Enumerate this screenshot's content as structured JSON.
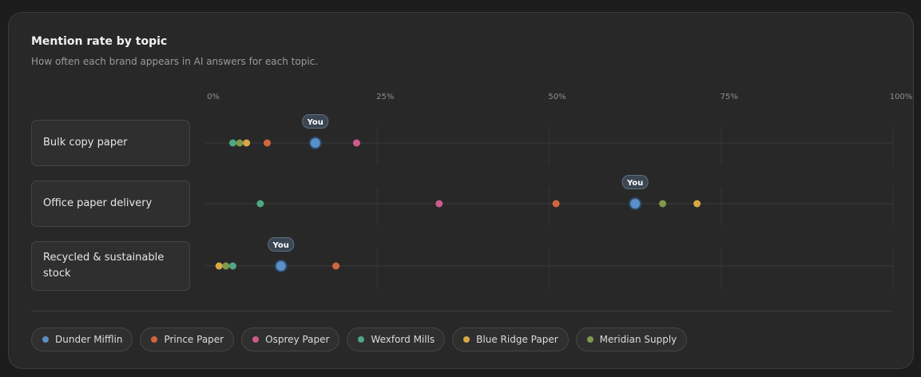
{
  "chart_data": {
    "type": "scatter",
    "title": "Mention rate by topic",
    "subtitle": "How often each brand appears in AI answers for each topic.",
    "axis_ticks": [
      {
        "value": 0,
        "label": "0%"
      },
      {
        "value": 25,
        "label": "25%"
      },
      {
        "value": 50,
        "label": "50%"
      },
      {
        "value": 75,
        "label": "75%"
      },
      {
        "value": 100,
        "label": "100%"
      }
    ],
    "xlim": [
      0,
      100
    ],
    "grid": true,
    "highlight_label": "You",
    "highlight_brand": "Dunder Mifflin",
    "legend_position": "bottom",
    "categories": [
      "Bulk copy paper",
      "Office paper delivery",
      "Recycled & sustainable stock"
    ],
    "series": [
      {
        "name": "Dunder Mifflin",
        "color": "#5b8fc9",
        "values": [
          16,
          62.5,
          11
        ]
      },
      {
        "name": "Prince Paper",
        "color": "#d0663f",
        "values": [
          9,
          51,
          19
        ]
      },
      {
        "name": "Osprey Paper",
        "color": "#cc5c8b",
        "values": [
          22,
          34,
          null
        ]
      },
      {
        "name": "Wexford Mills",
        "color": "#4fa884",
        "values": [
          4,
          8,
          4
        ]
      },
      {
        "name": "Blue Ridge Paper",
        "color": "#d9a844",
        "values": [
          6,
          71.5,
          2
        ]
      },
      {
        "name": "Meridian Supply",
        "color": "#7f9a4a",
        "values": [
          5,
          66.5,
          3
        ]
      }
    ]
  }
}
